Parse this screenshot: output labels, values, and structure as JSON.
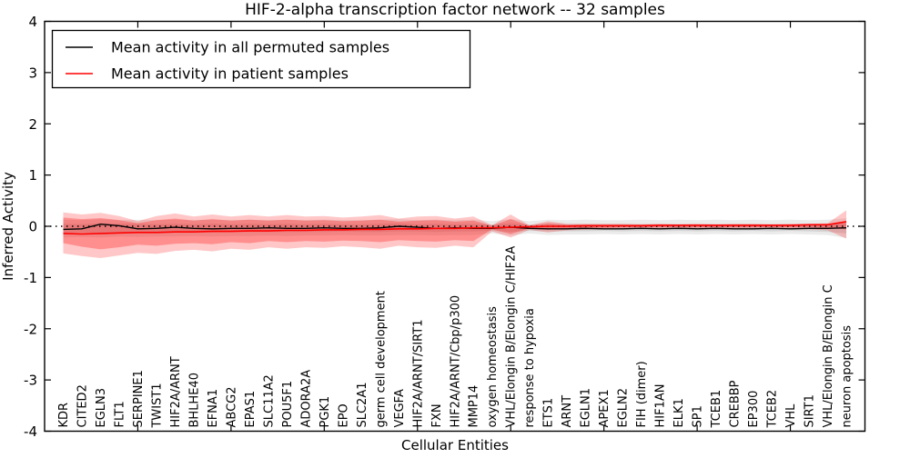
{
  "figure": {
    "title": "HIF-2-alpha transcription factor network -- 32 samples",
    "xlabel": "Cellular Entities",
    "ylabel": "Inferred Activity"
  },
  "legend": {
    "position": "upper left",
    "items": [
      {
        "label": "Mean activity in all permuted samples",
        "color": "#000000"
      },
      {
        "label": "Mean activity in patient samples",
        "color": "#ff0000"
      }
    ]
  },
  "chart_data": {
    "type": "line",
    "title": "HIF-2-alpha transcription factor network -- 32 samples",
    "xlabel": "Cellular Entities",
    "ylabel": "Inferred Activity",
    "ylim": [
      -4,
      4
    ],
    "yticks": [
      "-4",
      "-3",
      "-2",
      "-1",
      "0",
      "1",
      "2",
      "3",
      "4"
    ],
    "ytick_values": [
      -4,
      -3,
      -2,
      -1,
      0,
      1,
      2,
      3,
      4
    ],
    "x_major_ticks": [
      5,
      10,
      15,
      20,
      25,
      30,
      35,
      40
    ],
    "xlim": [
      0,
      44
    ],
    "grid": false,
    "zero_line": {
      "value": 0,
      "style": "dotted",
      "color": "#000000"
    },
    "categories": [
      "KDR",
      "CITED2",
      "EGLN3",
      "FLT1",
      "SERPINE1",
      "TWIST1",
      "HIF2A/ARNT",
      "BHLHE40",
      "EFNA1",
      "ABCG2",
      "EPAS1",
      "SLC11A2",
      "POU5F1",
      "ADORA2A",
      "PGK1",
      "EPO",
      "SLC2A1",
      "germ cell development",
      "VEGFA",
      "HIF2A/ARNT/SIRT1",
      "FXN",
      "HIF2A/ARNT/Cbp/p300",
      "MMP14",
      "oxygen homeostasis",
      "VHL/Elongin B/Elongin C/HIF2A",
      "response to hypoxia",
      "ETS1",
      "ARNT",
      "EGLN1",
      "APEX1",
      "EGLN2",
      "FIH (dimer)",
      "HIF1AN",
      "ELK1",
      "SP1",
      "TCEB1",
      "CREBBP",
      "EP300",
      "TCEB2",
      "VHL",
      "SIRT1",
      "VHL/Elongin B/Elongin C",
      "neuron apoptosis"
    ],
    "series": [
      {
        "name": "Mean activity in all permuted samples",
        "color": "#000000",
        "values": [
          -0.06,
          -0.05,
          0.04,
          0.01,
          -0.05,
          -0.04,
          -0.02,
          -0.04,
          -0.05,
          -0.04,
          -0.04,
          -0.03,
          -0.04,
          -0.04,
          -0.03,
          -0.04,
          -0.04,
          -0.03,
          0.0,
          -0.02,
          -0.04,
          -0.03,
          -0.04,
          -0.04,
          -0.02,
          -0.04,
          -0.05,
          -0.05,
          -0.04,
          -0.05,
          -0.05,
          -0.04,
          -0.05,
          -0.04,
          -0.05,
          -0.04,
          -0.05,
          -0.05,
          -0.04,
          -0.05,
          -0.04,
          -0.04,
          -0.03
        ]
      },
      {
        "name": "Mean activity in patient samples",
        "color": "#ff0000",
        "values": [
          -0.14,
          -0.15,
          -0.14,
          -0.13,
          -0.12,
          -0.12,
          -0.11,
          -0.11,
          -0.1,
          -0.1,
          -0.09,
          -0.09,
          -0.08,
          -0.08,
          -0.07,
          -0.07,
          -0.06,
          -0.06,
          -0.05,
          -0.05,
          -0.04,
          -0.04,
          -0.03,
          -0.03,
          -0.02,
          -0.01,
          0.0,
          0.0,
          0.01,
          0.01,
          0.01,
          0.01,
          0.02,
          0.02,
          0.02,
          0.02,
          0.02,
          0.02,
          0.02,
          0.02,
          0.03,
          0.03,
          0.09
        ]
      }
    ],
    "bands": [
      {
        "name": "permuted-band-outer",
        "color": "rgba(0,0,0,0.08)",
        "upper": [
          0.13,
          0.12,
          0.14,
          0.12,
          0.13,
          0.12,
          0.13,
          0.12,
          0.13,
          0.12,
          0.13,
          0.12,
          0.13,
          0.12,
          0.13,
          0.12,
          0.12,
          0.13,
          0.14,
          0.12,
          0.13,
          0.12,
          0.13,
          0.1,
          0.14,
          0.1,
          0.13,
          0.12,
          0.13,
          0.12,
          0.12,
          0.13,
          0.12,
          0.13,
          0.12,
          0.13,
          0.12,
          0.13,
          0.12,
          0.13,
          0.12,
          0.13,
          0.16
        ],
        "lower": [
          -0.22,
          -0.21,
          -0.22,
          -0.2,
          -0.21,
          -0.2,
          -0.2,
          -0.19,
          -0.2,
          -0.19,
          -0.19,
          -0.18,
          -0.19,
          -0.18,
          -0.18,
          -0.17,
          -0.18,
          -0.18,
          -0.17,
          -0.17,
          -0.18,
          -0.17,
          -0.17,
          -0.14,
          -0.18,
          -0.14,
          -0.17,
          -0.16,
          -0.16,
          -0.15,
          -0.16,
          -0.15,
          -0.16,
          -0.15,
          -0.16,
          -0.15,
          -0.16,
          -0.15,
          -0.16,
          -0.15,
          -0.16,
          -0.17,
          -0.23
        ]
      },
      {
        "name": "permuted-band-inner",
        "color": "rgba(0,0,0,0.09)",
        "upper": [
          0.05,
          0.04,
          0.06,
          0.05,
          0.05,
          0.04,
          0.05,
          0.04,
          0.05,
          0.04,
          0.05,
          0.04,
          0.05,
          0.04,
          0.05,
          0.04,
          0.04,
          0.05,
          0.06,
          0.04,
          0.05,
          0.04,
          0.05,
          0.03,
          0.06,
          0.03,
          0.05,
          0.04,
          0.04,
          0.04,
          0.04,
          0.04,
          0.04,
          0.04,
          0.04,
          0.04,
          0.04,
          0.04,
          0.04,
          0.04,
          0.04,
          0.05,
          0.07
        ],
        "lower": [
          -0.13,
          -0.12,
          -0.13,
          -0.12,
          -0.12,
          -0.12,
          -0.12,
          -0.11,
          -0.12,
          -0.11,
          -0.11,
          -0.11,
          -0.11,
          -0.11,
          -0.11,
          -0.1,
          -0.11,
          -0.11,
          -0.1,
          -0.1,
          -0.11,
          -0.1,
          -0.1,
          -0.09,
          -0.11,
          -0.09,
          -0.1,
          -0.1,
          -0.1,
          -0.09,
          -0.1,
          -0.09,
          -0.1,
          -0.09,
          -0.1,
          -0.09,
          -0.1,
          -0.09,
          -0.1,
          -0.09,
          -0.1,
          -0.11,
          -0.14
        ]
      },
      {
        "name": "patient-band-outer",
        "color": "rgba(255,0,0,0.22)",
        "upper": [
          0.27,
          0.23,
          0.26,
          0.2,
          0.1,
          0.2,
          0.25,
          0.19,
          0.23,
          0.19,
          0.22,
          0.19,
          0.22,
          0.19,
          0.2,
          0.17,
          0.19,
          0.22,
          0.15,
          0.19,
          0.2,
          0.15,
          0.19,
          0.02,
          0.23,
          0.02,
          0.1,
          0.05,
          0.05,
          0.05,
          0.05,
          0.04,
          0.05,
          0.04,
          0.05,
          0.04,
          0.05,
          0.05,
          0.04,
          0.05,
          0.05,
          0.06,
          0.31
        ],
        "lower": [
          -0.53,
          -0.58,
          -0.62,
          -0.57,
          -0.52,
          -0.54,
          -0.48,
          -0.46,
          -0.49,
          -0.44,
          -0.46,
          -0.41,
          -0.44,
          -0.41,
          -0.42,
          -0.39,
          -0.41,
          -0.44,
          -0.38,
          -0.41,
          -0.42,
          -0.38,
          -0.41,
          -0.1,
          -0.22,
          -0.07,
          -0.12,
          -0.08,
          -0.07,
          -0.06,
          -0.06,
          -0.05,
          -0.06,
          -0.05,
          -0.06,
          -0.05,
          -0.06,
          -0.06,
          -0.05,
          -0.06,
          -0.06,
          -0.08,
          -0.24
        ]
      },
      {
        "name": "patient-band-inner",
        "color": "rgba(255,0,0,0.28)",
        "upper": [
          0.17,
          0.14,
          0.16,
          0.12,
          0.06,
          0.12,
          0.15,
          0.11,
          0.14,
          0.11,
          0.13,
          0.11,
          0.13,
          0.11,
          0.12,
          0.1,
          0.11,
          0.13,
          0.09,
          0.11,
          0.12,
          0.09,
          0.11,
          0.01,
          0.14,
          0.01,
          0.06,
          0.03,
          0.03,
          0.03,
          0.03,
          0.03,
          0.03,
          0.03,
          0.03,
          0.03,
          0.03,
          0.03,
          0.03,
          0.03,
          0.03,
          0.04,
          0.07
        ],
        "lower": [
          -0.33,
          -0.4,
          -0.45,
          -0.41,
          -0.36,
          -0.38,
          -0.34,
          -0.33,
          -0.35,
          -0.31,
          -0.33,
          -0.29,
          -0.31,
          -0.29,
          -0.3,
          -0.28,
          -0.29,
          -0.31,
          -0.27,
          -0.29,
          -0.3,
          -0.27,
          -0.29,
          -0.06,
          -0.15,
          -0.04,
          -0.07,
          -0.04,
          -0.03,
          -0.03,
          -0.02,
          -0.02,
          -0.02,
          -0.02,
          -0.02,
          -0.02,
          -0.02,
          -0.02,
          -0.02,
          -0.02,
          -0.02,
          -0.03,
          -0.06
        ]
      }
    ]
  }
}
